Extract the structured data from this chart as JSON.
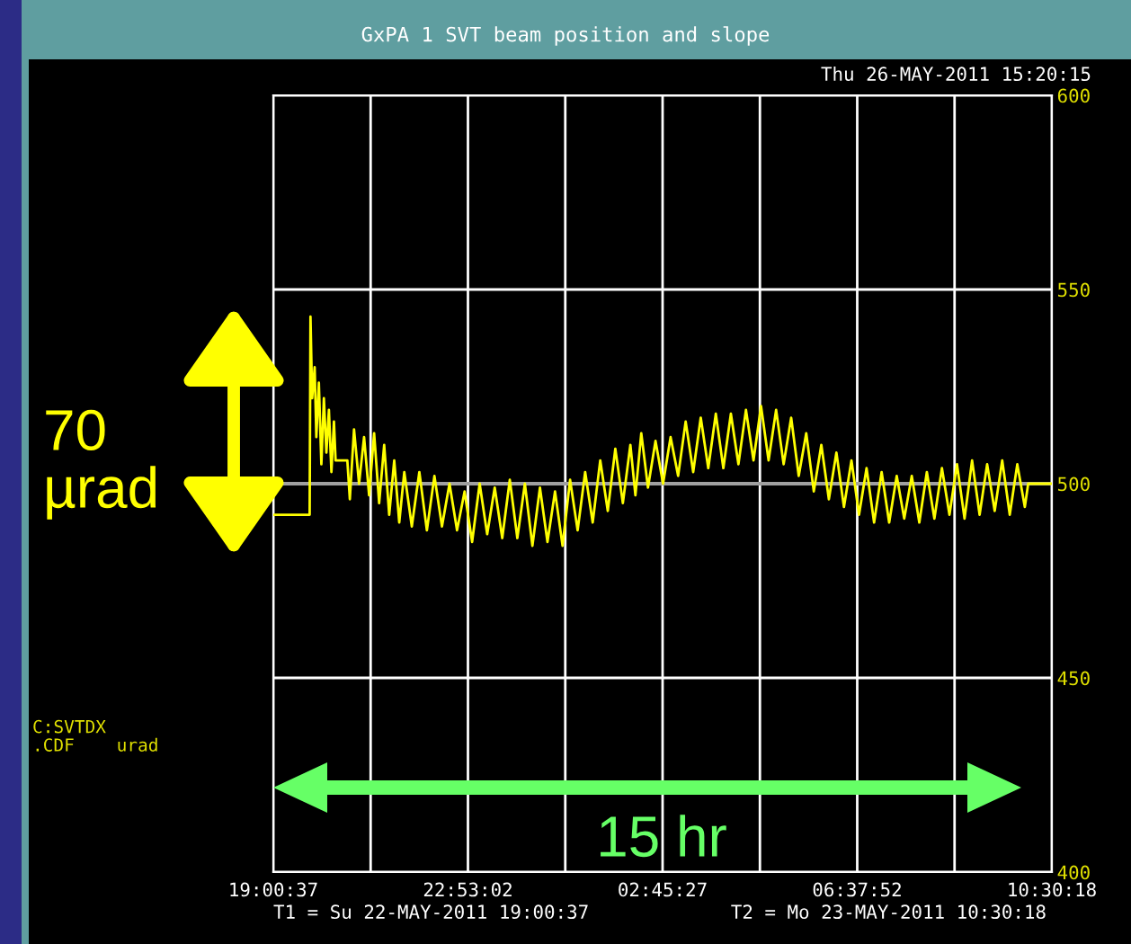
{
  "chart_data": {
    "type": "line",
    "title": "GxPA 1 SVT beam position and slope",
    "x": [
      "2011-05-22T19:01",
      "2011-05-22T19:44",
      "2011-05-22T19:45",
      "2011-05-22T19:47",
      "2011-05-22T19:50",
      "2011-05-22T19:52",
      "2011-05-22T19:55",
      "2011-05-22T19:58",
      "2011-05-22T20:01",
      "2011-05-22T20:04",
      "2011-05-22T20:07",
      "2011-05-22T20:10",
      "2011-05-22T20:13",
      "2011-05-22T20:15",
      "2011-05-22T20:29",
      "2011-05-22T20:32",
      "2011-05-22T20:37",
      "2011-05-22T20:43",
      "2011-05-22T20:49",
      "2011-05-22T20:55",
      "2011-05-22T21:01",
      "2011-05-22T21:07",
      "2011-05-22T21:13",
      "2011-05-22T21:19",
      "2011-05-22T21:25",
      "2011-05-22T21:31",
      "2011-05-22T21:37",
      "2011-05-22T21:46",
      "2011-05-22T21:55",
      "2011-05-22T22:04",
      "2011-05-22T22:13",
      "2011-05-22T22:22",
      "2011-05-22T22:31",
      "2011-05-22T22:40",
      "2011-05-22T22:49",
      "2011-05-22T22:58",
      "2011-05-22T23:07",
      "2011-05-22T23:16",
      "2011-05-22T23:25",
      "2011-05-22T23:34",
      "2011-05-22T23:43",
      "2011-05-22T23:52",
      "2011-05-23T00:01",
      "2011-05-23T00:10",
      "2011-05-23T00:19",
      "2011-05-23T00:28",
      "2011-05-23T00:37",
      "2011-05-23T00:46",
      "2011-05-23T00:55",
      "2011-05-23T01:04",
      "2011-05-23T01:13",
      "2011-05-23T01:22",
      "2011-05-23T01:31",
      "2011-05-23T01:40",
      "2011-05-23T01:49",
      "2011-05-23T01:58",
      "2011-05-23T02:07",
      "2011-05-23T02:13",
      "2011-05-23T02:20",
      "2011-05-23T02:28",
      "2011-05-23T02:37",
      "2011-05-23T02:46",
      "2011-05-23T02:55",
      "2011-05-23T03:04",
      "2011-05-23T03:13",
      "2011-05-23T03:22",
      "2011-05-23T03:31",
      "2011-05-23T03:40",
      "2011-05-23T03:49",
      "2011-05-23T03:58",
      "2011-05-23T04:07",
      "2011-05-23T04:16",
      "2011-05-23T04:25",
      "2011-05-23T04:34",
      "2011-05-23T04:43",
      "2011-05-23T04:52",
      "2011-05-23T05:01",
      "2011-05-23T05:10",
      "2011-05-23T05:19",
      "2011-05-23T05:28",
      "2011-05-23T05:37",
      "2011-05-23T05:46",
      "2011-05-23T05:55",
      "2011-05-23T06:04",
      "2011-05-23T06:13",
      "2011-05-23T06:22",
      "2011-05-23T06:31",
      "2011-05-23T06:40",
      "2011-05-23T06:49",
      "2011-05-23T06:58",
      "2011-05-23T07:07",
      "2011-05-23T07:16",
      "2011-05-23T07:25",
      "2011-05-23T07:34",
      "2011-05-23T07:43",
      "2011-05-23T07:52",
      "2011-05-23T08:01",
      "2011-05-23T08:10",
      "2011-05-23T08:19",
      "2011-05-23T08:28",
      "2011-05-23T08:37",
      "2011-05-23T08:46",
      "2011-05-23T08:55",
      "2011-05-23T09:04",
      "2011-05-23T09:13",
      "2011-05-23T09:22",
      "2011-05-23T09:31",
      "2011-05-23T09:40",
      "2011-05-23T09:49",
      "2011-05-23T09:58",
      "2011-05-23T10:02",
      "2011-05-23T10:30"
    ],
    "series": [
      {
        "color": "#ffff00",
        "values": [
          492,
          492,
          543,
          522,
          530,
          512,
          526,
          505,
          522,
          508,
          519,
          503,
          516,
          506,
          506,
          496,
          514,
          500,
          512,
          497,
          513,
          495,
          510,
          492,
          506,
          490,
          503,
          489,
          503,
          488,
          502,
          489,
          500,
          488,
          498,
          485,
          500,
          487,
          499,
          486,
          501,
          486,
          500,
          484,
          499,
          485,
          498,
          484,
          501,
          488,
          503,
          490,
          506,
          493,
          509,
          495,
          510,
          497,
          513,
          499,
          511,
          500,
          512,
          502,
          516,
          503,
          517,
          504,
          518,
          504,
          518,
          505,
          519,
          506,
          520,
          506,
          519,
          505,
          517,
          502,
          513,
          498,
          510,
          496,
          508,
          494,
          506,
          492,
          504,
          490,
          503,
          490,
          502,
          491,
          502,
          490,
          503,
          491,
          504,
          492,
          505,
          491,
          506,
          492,
          505,
          493,
          506,
          492,
          505,
          494,
          500,
          500
        ]
      }
    ],
    "xlim": [
      "2011-05-22T19:00:37",
      "2011-05-23T10:30:18"
    ],
    "xticks": [
      {
        "value": "2011-05-22T19:00:37",
        "label": "19:00:37"
      },
      {
        "value": "2011-05-22T20:56:50",
        "label": null
      },
      {
        "value": "2011-05-22T22:53:02",
        "label": "22:53:02"
      },
      {
        "value": "2011-05-23T00:49:15",
        "label": null
      },
      {
        "value": "2011-05-23T02:45:27",
        "label": "02:45:27"
      },
      {
        "value": "2011-05-23T04:41:40",
        "label": null
      },
      {
        "value": "2011-05-23T06:37:52",
        "label": "06:37:52"
      },
      {
        "value": "2011-05-23T08:34:05",
        "label": null
      },
      {
        "value": "2011-05-23T10:30:18",
        "label": "10:30:18"
      }
    ],
    "ylim": [
      400,
      600
    ],
    "yticks": [
      400,
      450,
      500,
      550,
      600
    ],
    "grid": true,
    "ref_lines": [
      {
        "axis": "y",
        "value": 500,
        "color": "#a0a0a0"
      }
    ],
    "annotations": [
      "Thu 26-MAY-2011 15:20:15",
      "T1 = Su 22-MAY-2011 19:00:37",
      "T2 = Mo 23-MAY-2011 10:30:18",
      "C:SVTDX\n.CDF    urad",
      "70\nµrad",
      "15 hr"
    ]
  }
}
